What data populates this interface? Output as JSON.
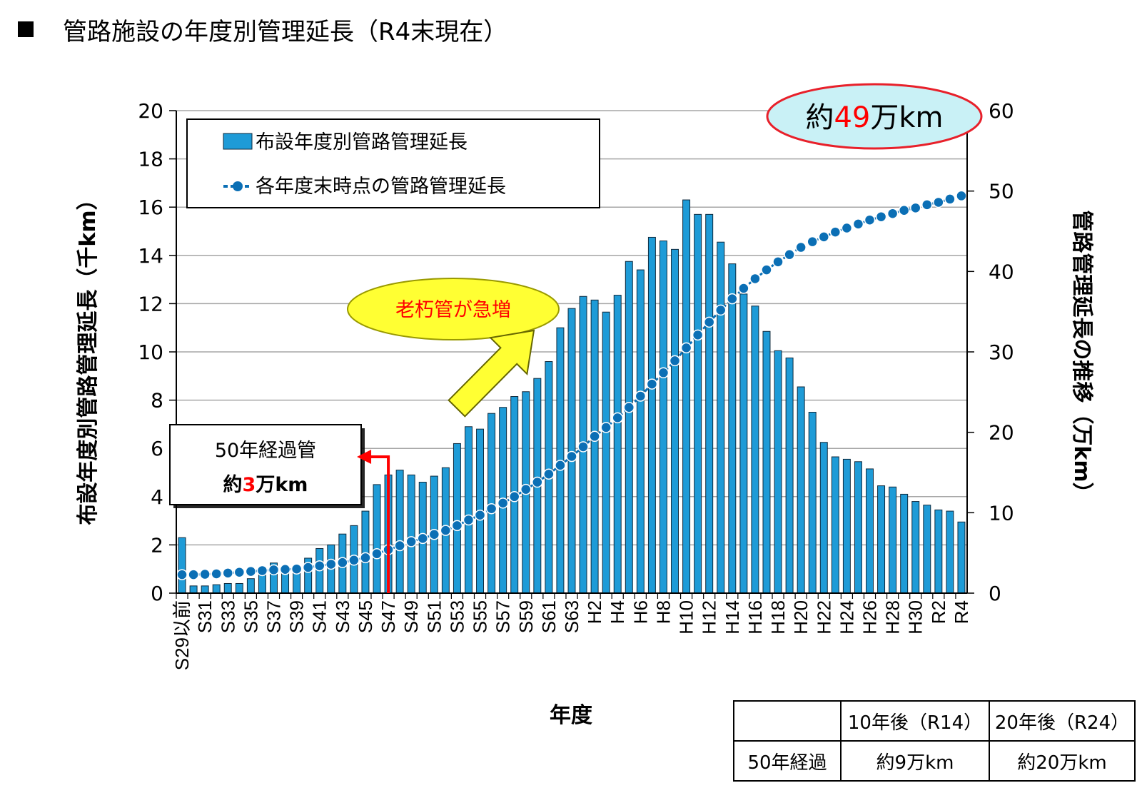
{
  "title": "管路施設の年度別管理延長（R4末現在）",
  "colors": {
    "bar": "#1E9BD7",
    "bar_edge": "#0F2A3D",
    "line": "#0B6FB5",
    "grid": "#A6A6A6",
    "red": "#FF0000",
    "yellow": "#FFFF33",
    "ellipse_fill": "#C9F1F6",
    "ellipse_stroke": "#E8202A",
    "callout_stroke": "#999900"
  },
  "legend": {
    "bar_label": "布設年度別管路管理延長",
    "line_label": "各年度末時点の管路管理延長"
  },
  "total_callout": {
    "prefix": "約",
    "number": "49",
    "suffix": "万km"
  },
  "rapid_increase_label": "老朽管が急増",
  "fifty_year_box": {
    "line1": "50年経過管",
    "prefix": "約",
    "number": "3",
    "suffix": "万km"
  },
  "future_table": {
    "headers": [
      "",
      "10年後（R14）",
      "20年後（R24）"
    ],
    "row_label": "50年経過",
    "values": [
      "約9万km",
      "約20万km"
    ]
  },
  "chart_data": {
    "type": "bar",
    "xlabel": "年度",
    "ylabel_left": "布設年度別管路管理延長（千km）",
    "ylabel_right": "管路管理延長の推移（万km）",
    "ylim_left": [
      0,
      20
    ],
    "ylim_right": [
      0,
      60
    ],
    "yticks_left": [
      "0",
      "2",
      "4",
      "6",
      "8",
      "10",
      "12",
      "14",
      "16",
      "18",
      "20"
    ],
    "yticks_right": [
      "0",
      "10",
      "20",
      "30",
      "40",
      "50",
      "60"
    ],
    "grid": true,
    "legend_position": "top-left",
    "categories": [
      "S29以前",
      "S30",
      "S31",
      "S32",
      "S33",
      "S34",
      "S35",
      "S36",
      "S37",
      "S38",
      "S39",
      "S40",
      "S41",
      "S42",
      "S43",
      "S44",
      "S45",
      "S46",
      "S47",
      "S48",
      "S49",
      "S50",
      "S51",
      "S52",
      "S53",
      "S54",
      "S55",
      "S56",
      "S57",
      "S58",
      "S59",
      "S60",
      "S61",
      "S62",
      "S63",
      "H1",
      "H2",
      "H3",
      "H4",
      "H5",
      "H6",
      "H7",
      "H8",
      "H9",
      "H10",
      "H11",
      "H12",
      "H13",
      "H14",
      "H15",
      "H16",
      "H17",
      "H18",
      "H19",
      "H20",
      "H21",
      "H22",
      "H23",
      "H24",
      "H25",
      "H26",
      "H27",
      "H28",
      "H29",
      "H30",
      "R1",
      "R2",
      "R3",
      "R4"
    ],
    "tick_labels": [
      "S29以前",
      "",
      "S31",
      "",
      "S33",
      "",
      "S35",
      "",
      "S37",
      "",
      "S39",
      "",
      "S41",
      "",
      "S43",
      "",
      "S45",
      "",
      "S47",
      "",
      "S49",
      "",
      "S51",
      "",
      "S53",
      "",
      "S55",
      "",
      "S57",
      "",
      "S59",
      "",
      "S61",
      "",
      "S63",
      "",
      "H2",
      "",
      "H4",
      "",
      "H6",
      "",
      "H8",
      "",
      "H10",
      "",
      "H12",
      "",
      "H14",
      "",
      "H16",
      "",
      "H18",
      "",
      "H20",
      "",
      "H22",
      "",
      "H24",
      "",
      "H26",
      "",
      "H28",
      "",
      "H30",
      "",
      "R2",
      "",
      "R4"
    ],
    "series": [
      {
        "name": "布設年度別管路管理延長",
        "axis": "left",
        "type": "bar",
        "values": [
          2.3,
          0.3,
          0.3,
          0.35,
          0.4,
          0.4,
          0.6,
          0.9,
          1.25,
          0.95,
          1.05,
          1.45,
          1.85,
          2.0,
          2.45,
          2.8,
          3.4,
          4.5,
          4.9,
          5.1,
          4.9,
          4.6,
          4.85,
          5.2,
          6.2,
          6.9,
          6.8,
          7.45,
          7.7,
          8.15,
          8.35,
          8.9,
          9.6,
          11.0,
          11.8,
          12.3,
          12.15,
          11.65,
          12.35,
          13.75,
          13.4,
          14.75,
          14.6,
          14.25,
          16.3,
          15.7,
          15.7,
          14.55,
          13.65,
          12.4,
          11.9,
          10.85,
          10.05,
          9.75,
          8.55,
          7.5,
          6.25,
          5.65,
          5.55,
          5.45,
          5.15,
          4.45,
          4.4,
          4.1,
          3.8,
          3.65,
          3.45,
          3.4,
          2.95
        ]
      },
      {
        "name": "各年度末時点の管路管理延長",
        "axis": "right",
        "type": "line",
        "values": [
          2.3,
          2.3,
          2.35,
          2.4,
          2.5,
          2.6,
          2.7,
          2.8,
          2.9,
          2.95,
          3.0,
          3.2,
          3.4,
          3.6,
          3.8,
          4.1,
          4.4,
          4.9,
          5.4,
          5.9,
          6.4,
          6.8,
          7.3,
          7.8,
          8.4,
          9.1,
          9.7,
          10.5,
          11.2,
          12.0,
          12.9,
          13.8,
          14.8,
          15.9,
          17.0,
          18.2,
          19.5,
          20.6,
          21.8,
          23.1,
          24.5,
          26.0,
          27.4,
          28.9,
          30.5,
          32.1,
          33.7,
          35.2,
          36.6,
          37.9,
          39.1,
          40.2,
          41.2,
          42.1,
          43.0,
          43.7,
          44.3,
          44.9,
          45.4,
          45.9,
          46.4,
          46.8,
          47.2,
          47.6,
          47.9,
          48.3,
          48.6,
          49.0,
          49.4
        ]
      }
    ],
    "annotations": [
      "老朽管が急増",
      "約49万km",
      "50年経過管 約3万km"
    ]
  }
}
